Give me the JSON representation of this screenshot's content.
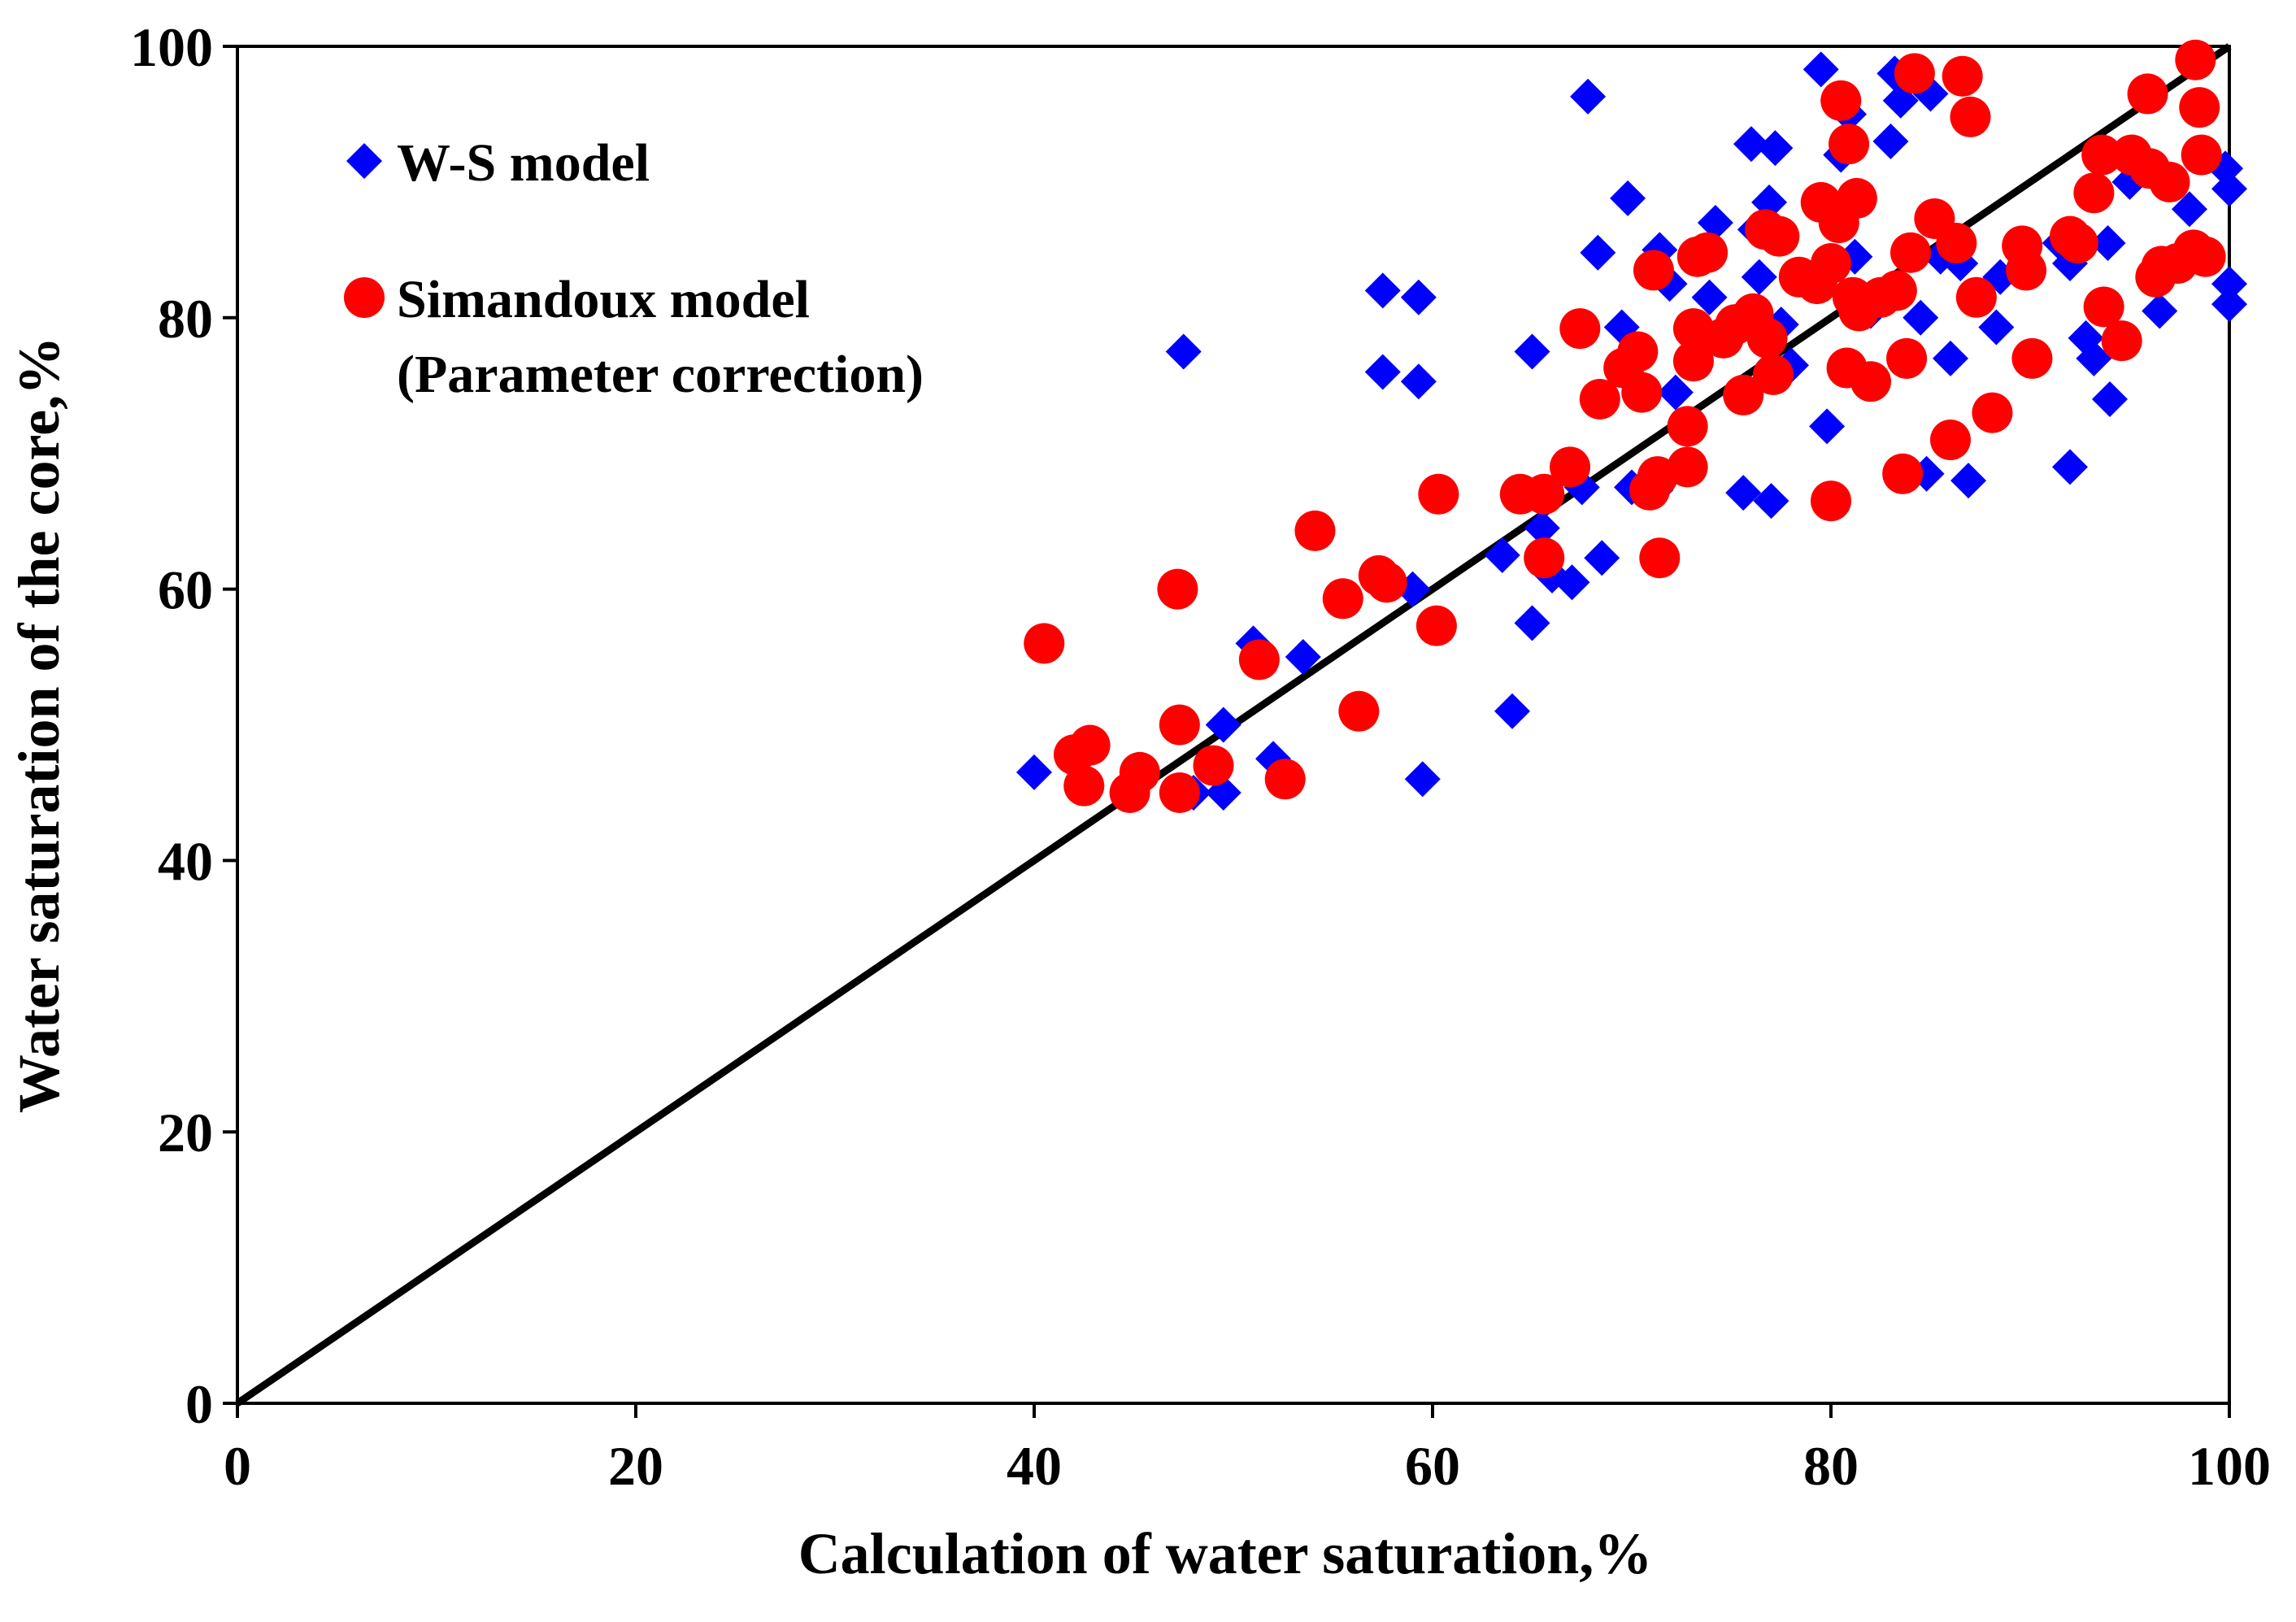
{
  "chart_data": {
    "type": "scatter",
    "title": "",
    "xlabel": "Calculation of water saturation,%",
    "ylabel": "Water saturation of the core,%",
    "xlim": [
      0,
      100
    ],
    "ylim": [
      0,
      100
    ],
    "xticks": [
      "0",
      "20",
      "40",
      "60",
      "80",
      "100"
    ],
    "yticks": [
      "0",
      "20",
      "40",
      "60",
      "80",
      "100"
    ],
    "grid": false,
    "legend_position": "top-left",
    "reference_line": {
      "name": "1:1 line",
      "from": [
        0,
        0
      ],
      "to": [
        100,
        100
      ],
      "color": "#000000"
    },
    "series": [
      {
        "name": "W-S model",
        "marker": "diamond",
        "color": "#0000FF",
        "points": [
          [
            40,
            46.5
          ],
          [
            42,
            48
          ],
          [
            47.5,
            77.5
          ],
          [
            48,
            45
          ],
          [
            49.5,
            45
          ],
          [
            49.5,
            50
          ],
          [
            51,
            56
          ],
          [
            52,
            47.5
          ],
          [
            53.5,
            55
          ],
          [
            57.5,
            82
          ],
          [
            57.5,
            76
          ],
          [
            59,
            60
          ],
          [
            59.3,
            81.5
          ],
          [
            59.3,
            75.3
          ],
          [
            59.5,
            46
          ],
          [
            63.5,
            62.5
          ],
          [
            64,
            51
          ],
          [
            65,
            57.5
          ],
          [
            65,
            77.5
          ],
          [
            65.5,
            64.5
          ],
          [
            66,
            61
          ],
          [
            67,
            60.5
          ],
          [
            67.5,
            67.5
          ],
          [
            67.8,
            96.3
          ],
          [
            68.3,
            84.8
          ],
          [
            68.5,
            62.3
          ],
          [
            69.5,
            79.3
          ],
          [
            69.8,
            88.8
          ],
          [
            70,
            67.5
          ],
          [
            71.2,
            67.3
          ],
          [
            71.4,
            85
          ],
          [
            71.9,
            82.5
          ],
          [
            72.2,
            74.5
          ],
          [
            73.5,
            78.5
          ],
          [
            73.9,
            81.5
          ],
          [
            74.2,
            87
          ],
          [
            75.6,
            67.1
          ],
          [
            76,
            92.8
          ],
          [
            76.2,
            86.5
          ],
          [
            76.4,
            83
          ],
          [
            76.9,
            88.5
          ],
          [
            77,
            66.5
          ],
          [
            77.2,
            92.5
          ],
          [
            77.5,
            79.5
          ],
          [
            78,
            76.5
          ],
          [
            79.5,
            98.3
          ],
          [
            79.8,
            72
          ],
          [
            80.5,
            92
          ],
          [
            80.9,
            95
          ],
          [
            81.2,
            84.5
          ],
          [
            82,
            80.5
          ],
          [
            83,
            93
          ],
          [
            83.2,
            98
          ],
          [
            83.5,
            96
          ],
          [
            84.5,
            80
          ],
          [
            84.8,
            68.5
          ],
          [
            85,
            96.5
          ],
          [
            85.5,
            84.5
          ],
          [
            86,
            77
          ],
          [
            86.5,
            84
          ],
          [
            86.9,
            68
          ],
          [
            88,
            73
          ],
          [
            88.3,
            79.3
          ],
          [
            88.5,
            83
          ],
          [
            91.5,
            85.5
          ],
          [
            92,
            84
          ],
          [
            92,
            69
          ],
          [
            92.8,
            78.5
          ],
          [
            93.2,
            77
          ],
          [
            93.9,
            85.5
          ],
          [
            94,
            74
          ],
          [
            95,
            90
          ],
          [
            96.5,
            80.5
          ],
          [
            98,
            88
          ],
          [
            99.8,
            91
          ],
          [
            100,
            89.5
          ],
          [
            100,
            82.5
          ],
          [
            100,
            81
          ]
        ]
      },
      {
        "name": "Simandoux model\n(Parameter correction)",
        "legend_lines": [
          "Simandoux model",
          "(Parameter correction)"
        ],
        "marker": "circle",
        "color": "#FF0000",
        "points": [
          [
            40.5,
            56
          ],
          [
            42,
            47.8
          ],
          [
            42.5,
            45.5
          ],
          [
            42.8,
            48.5
          ],
          [
            44.8,
            45
          ],
          [
            45.3,
            46.5
          ],
          [
            47.2,
            60
          ],
          [
            47.3,
            50
          ],
          [
            47.3,
            45
          ],
          [
            49,
            47
          ],
          [
            51.3,
            54.8
          ],
          [
            52.6,
            46
          ],
          [
            54.1,
            64.3
          ],
          [
            55.5,
            59.3
          ],
          [
            56.3,
            51
          ],
          [
            57.3,
            61
          ],
          [
            57.7,
            60.5
          ],
          [
            60.2,
            57.3
          ],
          [
            60.3,
            67
          ],
          [
            64.4,
            67
          ],
          [
            65.6,
            62.3
          ],
          [
            65.6,
            67
          ],
          [
            66.9,
            69
          ],
          [
            67.4,
            79.2
          ],
          [
            68.4,
            74
          ],
          [
            69.6,
            76.3
          ],
          [
            70.3,
            77.5
          ],
          [
            70.5,
            74.5
          ],
          [
            70.9,
            67.3
          ],
          [
            71.1,
            83.5
          ],
          [
            71.3,
            68.3
          ],
          [
            71.4,
            62.3
          ],
          [
            72.8,
            72
          ],
          [
            72.8,
            69
          ],
          [
            73.1,
            79.2
          ],
          [
            73.1,
            76.8
          ],
          [
            73.3,
            84.5
          ],
          [
            73.8,
            84.8
          ],
          [
            74.6,
            78.5
          ],
          [
            75.2,
            79.5
          ],
          [
            75.6,
            74.3
          ],
          [
            76.1,
            80.3
          ],
          [
            76.7,
            86.5
          ],
          [
            76.8,
            78.5
          ],
          [
            77.1,
            75.8
          ],
          [
            77.4,
            86
          ],
          [
            78.4,
            83
          ],
          [
            79.3,
            82.5
          ],
          [
            79.5,
            88.5
          ],
          [
            80,
            84
          ],
          [
            80,
            66.5
          ],
          [
            80.4,
            87
          ],
          [
            80.5,
            96
          ],
          [
            80.8,
            76.3
          ],
          [
            80.9,
            92.8
          ],
          [
            81.1,
            81.5
          ],
          [
            81.3,
            88.8
          ],
          [
            81.4,
            80.5
          ],
          [
            82,
            75.3
          ],
          [
            82.5,
            81.5
          ],
          [
            83.3,
            82
          ],
          [
            83.6,
            68.5
          ],
          [
            83.8,
            77
          ],
          [
            84,
            84.8
          ],
          [
            84.2,
            98
          ],
          [
            85.2,
            87.3
          ],
          [
            86,
            71
          ],
          [
            86.3,
            85.5
          ],
          [
            86.6,
            97.8
          ],
          [
            87,
            94.8
          ],
          [
            87.3,
            81.5
          ],
          [
            88.1,
            73
          ],
          [
            89.6,
            85.3
          ],
          [
            89.8,
            83.5
          ],
          [
            90.1,
            77
          ],
          [
            92,
            86
          ],
          [
            92.4,
            85.5
          ],
          [
            93.2,
            89.2
          ],
          [
            93.6,
            92
          ],
          [
            93.7,
            80.8
          ],
          [
            94.6,
            78.3
          ],
          [
            95.1,
            92
          ],
          [
            95.9,
            96.5
          ],
          [
            96,
            91
          ],
          [
            96.3,
            83
          ],
          [
            96.6,
            83.8
          ],
          [
            97,
            90
          ],
          [
            97.4,
            84
          ],
          [
            98.2,
            85
          ],
          [
            98.3,
            99
          ],
          [
            98.5,
            95.5
          ],
          [
            98.6,
            92
          ],
          [
            98.8,
            84.5
          ]
        ]
      }
    ]
  }
}
